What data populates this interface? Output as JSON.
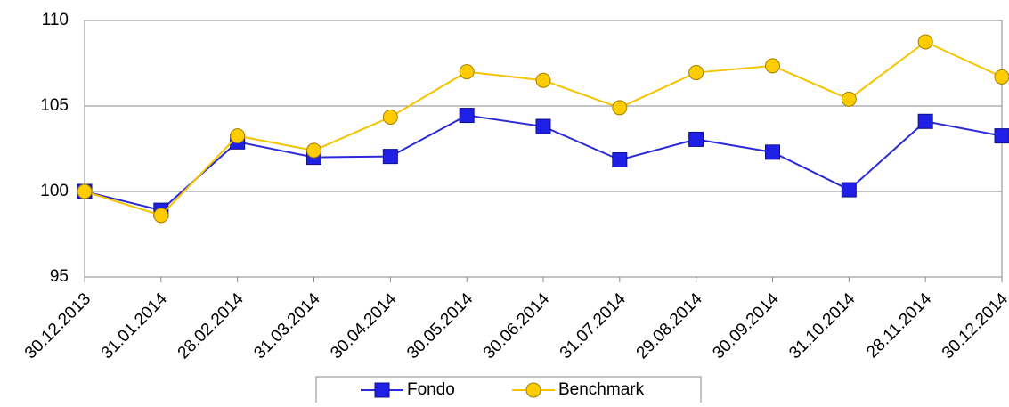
{
  "chart_data": {
    "type": "line",
    "categories": [
      "30.12.2013",
      "31.01.2014",
      "28.02.2014",
      "31.03.2014",
      "30.04.2014",
      "30.05.2014",
      "30.06.2014",
      "31.07.2014",
      "29.08.2014",
      "30.09.2014",
      "31.10.2014",
      "28.11.2014",
      "30.12.2014"
    ],
    "series": [
      {
        "name": "Fondo",
        "color": "#1f1fe6",
        "marker": "square",
        "values": [
          100,
          98.9,
          102.9,
          102.0,
          102.05,
          104.45,
          103.8,
          101.85,
          103.05,
          102.3,
          100.1,
          104.1,
          103.25
        ]
      },
      {
        "name": "Benchmark",
        "color": "#ffcc00",
        "marker": "circle",
        "values": [
          100,
          98.6,
          103.25,
          102.4,
          104.35,
          107.0,
          106.5,
          104.9,
          106.95,
          107.35,
          105.4,
          108.75,
          106.7
        ]
      }
    ],
    "ylim": [
      95,
      110
    ],
    "yticks": [
      95,
      100,
      105,
      110
    ],
    "grid": true,
    "legend": "bottom"
  }
}
